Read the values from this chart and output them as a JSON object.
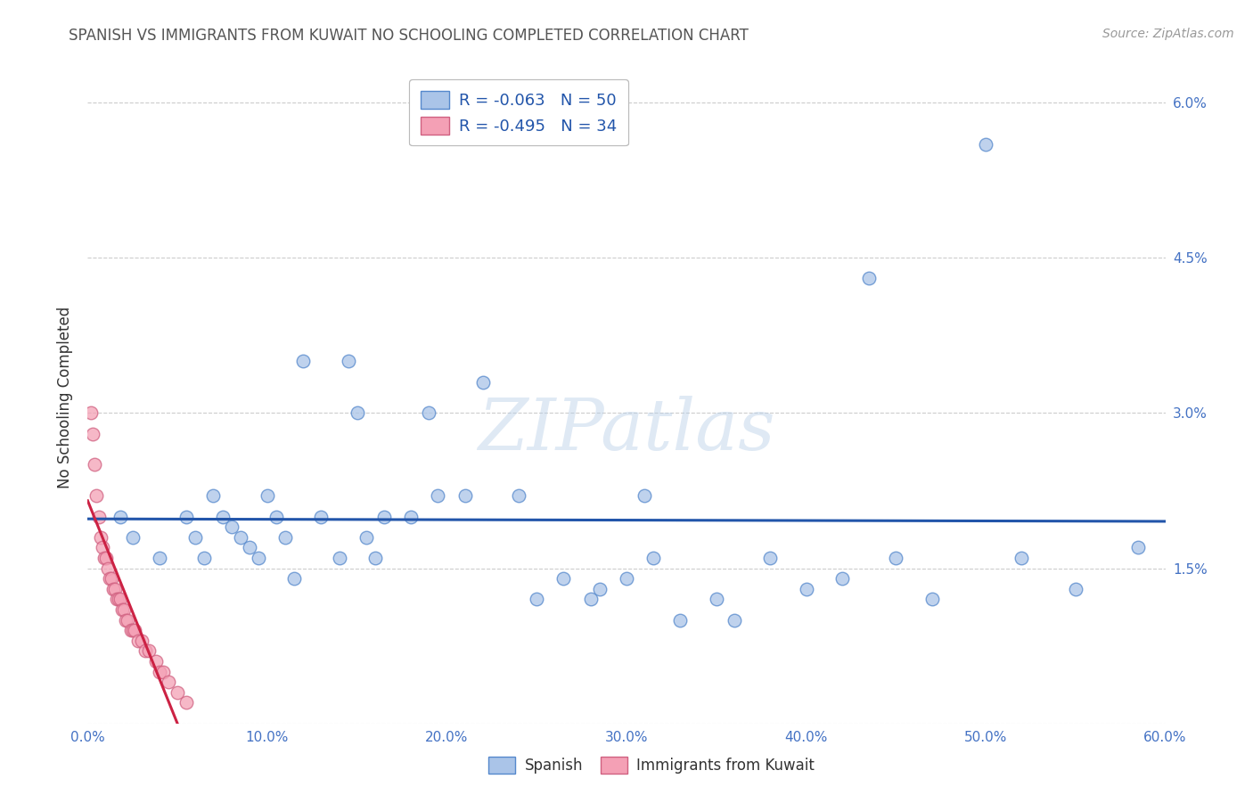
{
  "title": "SPANISH VS IMMIGRANTS FROM KUWAIT NO SCHOOLING COMPLETED CORRELATION CHART",
  "source": "Source: ZipAtlas.com",
  "ylabel": "No Schooling Completed",
  "xlim": [
    0.0,
    0.6
  ],
  "ylim": [
    0.0,
    0.063
  ],
  "xtick_positions": [
    0.0,
    0.1,
    0.2,
    0.3,
    0.4,
    0.5,
    0.6
  ],
  "xtick_labels": [
    "0.0%",
    "10.0%",
    "20.0%",
    "30.0%",
    "40.0%",
    "50.0%",
    "60.0%"
  ],
  "ytick_positions": [
    0.0,
    0.015,
    0.03,
    0.045,
    0.06
  ],
  "ytick_labels": [
    "",
    "1.5%",
    "3.0%",
    "4.5%",
    "6.0%"
  ],
  "background_color": "#ffffff",
  "grid_color": "#cccccc",
  "title_color": "#555555",
  "axis_tick_color": "#4472c4",
  "blue_scatter_color": "#aac4e8",
  "blue_edge_color": "#5588cc",
  "pink_scatter_color": "#f4a0b5",
  "pink_edge_color": "#d06080",
  "blue_line_color": "#2255aa",
  "pink_line_color": "#cc2244",
  "watermark": "ZIPatlas",
  "legend_label_color": "#2255aa",
  "blue_legend_label": "R = -0.063   N = 50",
  "pink_legend_label": "R = -0.495   N = 34",
  "bottom_legend_blue": "Spanish",
  "bottom_legend_pink": "Immigrants from Kuwait",
  "spanish_x": [
    0.018,
    0.025,
    0.04,
    0.055,
    0.06,
    0.065,
    0.07,
    0.075,
    0.08,
    0.085,
    0.09,
    0.095,
    0.1,
    0.105,
    0.11,
    0.115,
    0.12,
    0.13,
    0.14,
    0.145,
    0.15,
    0.155,
    0.16,
    0.165,
    0.18,
    0.19,
    0.195,
    0.21,
    0.22,
    0.24,
    0.25,
    0.265,
    0.28,
    0.285,
    0.3,
    0.31,
    0.315,
    0.33,
    0.35,
    0.36,
    0.38,
    0.4,
    0.42,
    0.435,
    0.45,
    0.47,
    0.5,
    0.52,
    0.55,
    0.585
  ],
  "spanish_y": [
    0.02,
    0.018,
    0.016,
    0.02,
    0.018,
    0.016,
    0.022,
    0.02,
    0.019,
    0.018,
    0.017,
    0.016,
    0.022,
    0.02,
    0.018,
    0.014,
    0.035,
    0.02,
    0.016,
    0.035,
    0.03,
    0.018,
    0.016,
    0.02,
    0.02,
    0.03,
    0.022,
    0.022,
    0.033,
    0.022,
    0.012,
    0.014,
    0.012,
    0.013,
    0.014,
    0.022,
    0.016,
    0.01,
    0.012,
    0.01,
    0.016,
    0.013,
    0.014,
    0.043,
    0.016,
    0.012,
    0.056,
    0.016,
    0.013,
    0.017
  ],
  "kuwait_x": [
    0.002,
    0.003,
    0.004,
    0.005,
    0.006,
    0.007,
    0.008,
    0.009,
    0.01,
    0.011,
    0.012,
    0.013,
    0.014,
    0.015,
    0.016,
    0.017,
    0.018,
    0.019,
    0.02,
    0.021,
    0.022,
    0.024,
    0.025,
    0.026,
    0.028,
    0.03,
    0.032,
    0.034,
    0.038,
    0.04,
    0.042,
    0.045,
    0.05,
    0.055
  ],
  "kuwait_y": [
    0.03,
    0.028,
    0.025,
    0.022,
    0.02,
    0.018,
    0.017,
    0.016,
    0.016,
    0.015,
    0.014,
    0.014,
    0.013,
    0.013,
    0.012,
    0.012,
    0.012,
    0.011,
    0.011,
    0.01,
    0.01,
    0.009,
    0.009,
    0.009,
    0.008,
    0.008,
    0.007,
    0.007,
    0.006,
    0.005,
    0.005,
    0.004,
    0.003,
    0.002
  ]
}
